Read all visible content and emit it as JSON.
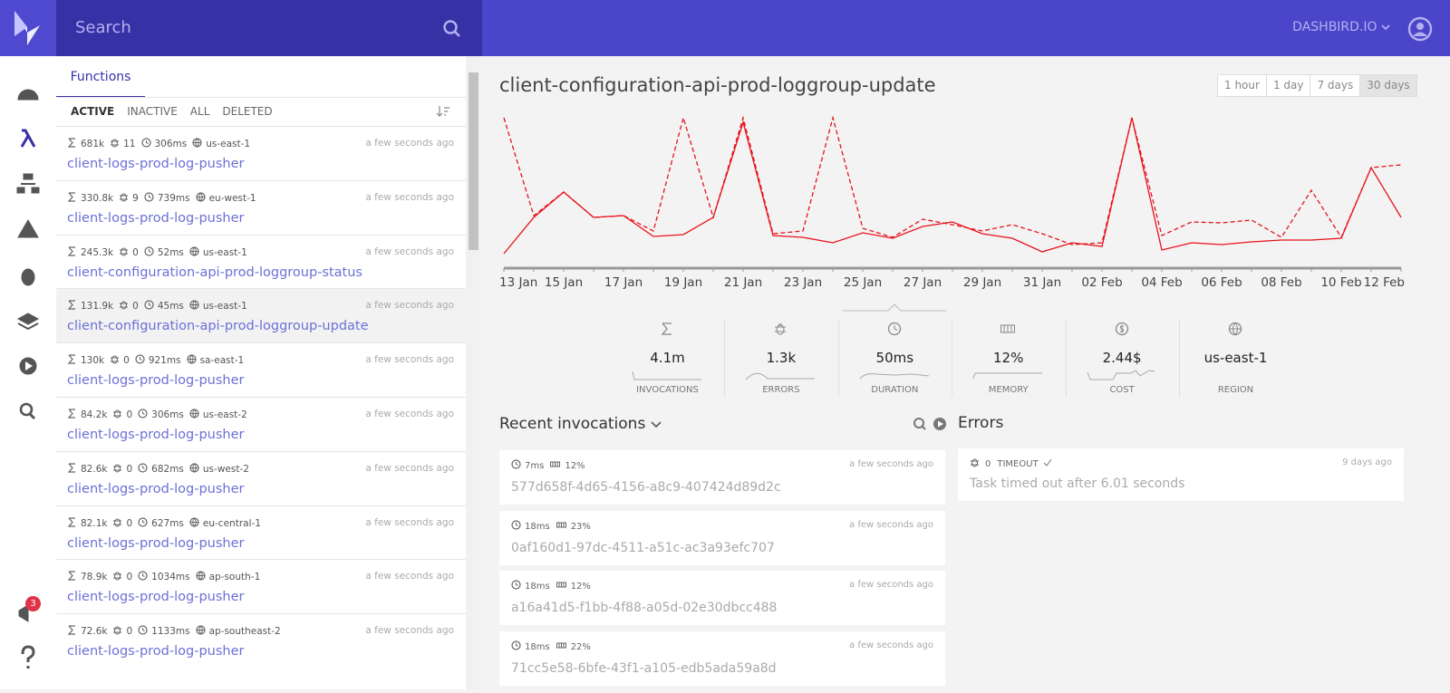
{
  "header": {
    "search_placeholder": "Search",
    "account": "DASHBIRD.IO"
  },
  "sidebar": {
    "badge": "3"
  },
  "functions": {
    "tab": "Functions",
    "filters": [
      "ACTIVE",
      "INACTIVE",
      "ALL",
      "DELETED"
    ],
    "active_filter": 0,
    "selected": 3,
    "items": [
      {
        "invocations": "681k",
        "errors": "11",
        "duration": "306ms",
        "region": "us-east-1",
        "time": "a few seconds ago",
        "name": "client-logs-prod-log-pusher"
      },
      {
        "invocations": "330.8k",
        "errors": "9",
        "duration": "739ms",
        "region": "eu-west-1",
        "time": "a few seconds ago",
        "name": "client-logs-prod-log-pusher"
      },
      {
        "invocations": "245.3k",
        "errors": "0",
        "duration": "52ms",
        "region": "us-east-1",
        "time": "a few seconds ago",
        "name": "client-configuration-api-prod-loggroup-status"
      },
      {
        "invocations": "131.9k",
        "errors": "0",
        "duration": "45ms",
        "region": "us-east-1",
        "time": "a few seconds ago",
        "name": "client-configuration-api-prod-loggroup-update"
      },
      {
        "invocations": "130k",
        "errors": "0",
        "duration": "921ms",
        "region": "sa-east-1",
        "time": "a few seconds ago",
        "name": "client-logs-prod-log-pusher"
      },
      {
        "invocations": "84.2k",
        "errors": "0",
        "duration": "306ms",
        "region": "us-east-2",
        "time": "a few seconds ago",
        "name": "client-logs-prod-log-pusher"
      },
      {
        "invocations": "82.6k",
        "errors": "0",
        "duration": "682ms",
        "region": "us-west-2",
        "time": "a few seconds ago",
        "name": "client-logs-prod-log-pusher"
      },
      {
        "invocations": "82.1k",
        "errors": "0",
        "duration": "627ms",
        "region": "eu-central-1",
        "time": "a few seconds ago",
        "name": "client-logs-prod-log-pusher"
      },
      {
        "invocations": "78.9k",
        "errors": "0",
        "duration": "1034ms",
        "region": "ap-south-1",
        "time": "a few seconds ago",
        "name": "client-logs-prod-log-pusher"
      },
      {
        "invocations": "72.6k",
        "errors": "0",
        "duration": "1133ms",
        "region": "ap-southeast-2",
        "time": "a few seconds ago",
        "name": "client-logs-prod-log-pusher"
      }
    ]
  },
  "main": {
    "title": "client-configuration-api-prod-loggroup-update",
    "ranges": [
      "1 hour",
      "1 day",
      "7 days",
      "30 days"
    ],
    "active_range": 3,
    "stats": [
      {
        "value": "4.1m",
        "label": "INVOCATIONS"
      },
      {
        "value": "1.3k",
        "label": "ERRORS"
      },
      {
        "value": "50ms",
        "label": "DURATION"
      },
      {
        "value": "12%",
        "label": "MEMORY"
      },
      {
        "value": "2.44$",
        "label": "COST"
      },
      {
        "value": "us-east-1",
        "label": "REGION"
      }
    ]
  },
  "chart_data": {
    "type": "line",
    "categories": [
      "13 Jan",
      null,
      "15 Jan",
      null,
      "17 Jan",
      null,
      "19 Jan",
      null,
      "21 Jan",
      null,
      "23 Jan",
      null,
      "25 Jan",
      null,
      "27 Jan",
      null,
      "29 Jan",
      null,
      "31 Jan",
      null,
      "02 Feb",
      null,
      "04 Feb",
      null,
      "06 Feb",
      null,
      "08 Feb",
      null,
      "10 Feb",
      null,
      "12 Feb"
    ],
    "ylim": [
      0,
      170
    ],
    "series": [
      {
        "color": "#e8121c",
        "values": [
          15,
          55,
          83,
          55,
          57,
          34,
          36,
          55,
          160,
          35,
          33,
          27,
          38,
          32,
          45,
          50,
          37,
          32,
          17,
          27,
          23,
          165,
          19,
          27,
          25,
          28,
          30,
          30,
          32,
          110,
          55
        ]
      },
      {
        "color": "#e8121c",
        "dash": "dashed",
        "values": [
          165,
          57,
          83,
          55,
          57,
          40,
          165,
          55,
          165,
          37,
          40,
          165,
          43,
          33,
          53,
          47,
          40,
          47,
          37,
          25,
          27,
          165,
          35,
          50,
          49,
          52,
          33,
          85,
          33,
          110,
          113
        ]
      }
    ]
  },
  "recent": {
    "title": "Recent invocations",
    "items": [
      {
        "duration": "7ms",
        "memory": "12%",
        "time": "a few seconds ago",
        "id": "577d658f-4d65-4156-a8c9-407424d89d2c"
      },
      {
        "duration": "18ms",
        "memory": "23%",
        "time": "a few seconds ago",
        "id": "0af160d1-97dc-4511-a51c-ac3a93efc707"
      },
      {
        "duration": "18ms",
        "memory": "12%",
        "time": "a few seconds ago",
        "id": "a16a41d5-f1bb-4f88-a05d-02e30dbcc488"
      },
      {
        "duration": "18ms",
        "memory": "22%",
        "time": "a few seconds ago",
        "id": "71cc5e58-6bfe-43f1-a105-edb5ada59a8d"
      }
    ]
  },
  "errors": {
    "title": "Errors",
    "items": [
      {
        "count": "0",
        "type": "TIMEOUT",
        "time": "9 days ago",
        "message": "Task timed out after 6.01 seconds"
      }
    ]
  }
}
